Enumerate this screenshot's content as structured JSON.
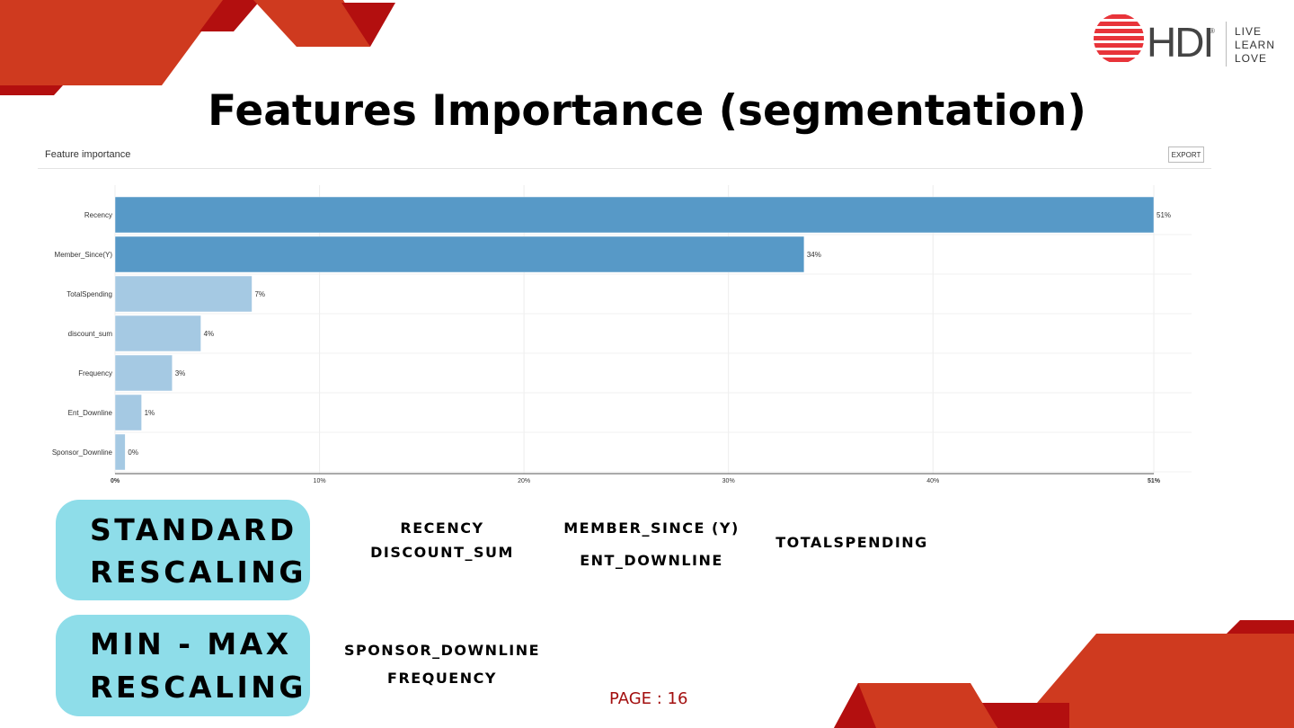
{
  "slide": {
    "title": "Features Importance (segmentation)",
    "page_label": "PAGE : 16"
  },
  "logo": {
    "brand": "HDI",
    "registered": "®",
    "tagline": [
      "LIVE",
      "LEARN",
      "LOVE"
    ]
  },
  "panel": {
    "title": "Feature importance",
    "export_label": "EXPORT"
  },
  "chart_data": {
    "type": "bar",
    "orientation": "horizontal",
    "categories": [
      "Recency",
      "Member_Since(Y)",
      "TotalSpending",
      "discount_sum",
      "Frequency",
      "Ent_Downline",
      "Sponsor_Downline"
    ],
    "values": [
      50.8,
      33.7,
      6.7,
      4.2,
      2.8,
      1.3,
      0.5
    ],
    "data_labels": [
      "51%",
      "34%",
      "7%",
      "4%",
      "3%",
      "1%",
      "0%"
    ],
    "x_ticks": [
      0,
      10,
      20,
      30,
      40,
      50.8
    ],
    "x_tick_labels": [
      "0%",
      "10%",
      "20%",
      "30%",
      "40%",
      "51%"
    ],
    "xlim": [
      0,
      50.8
    ],
    "grid": true,
    "colors": {
      "high": "#5799c7",
      "low": "#a5c9e3"
    }
  },
  "groups": [
    {
      "label_lines": [
        "STANDARD",
        "RESCALING"
      ],
      "features": [
        "RECENCY",
        "DISCOUNT_SUM",
        "MEMBER_SINCE (Y)",
        "ENT_DOWNLINE",
        "TOTALSPENDING"
      ]
    },
    {
      "label_lines": [
        "MIN - MAX",
        "RESCALING"
      ],
      "features": [
        "SPONSOR_DOWNLINE",
        "FREQUENCY"
      ]
    }
  ],
  "colors": {
    "accent_red": "#cf3a1f",
    "dark_red": "#b30f0f",
    "pill": "#8edde9"
  }
}
